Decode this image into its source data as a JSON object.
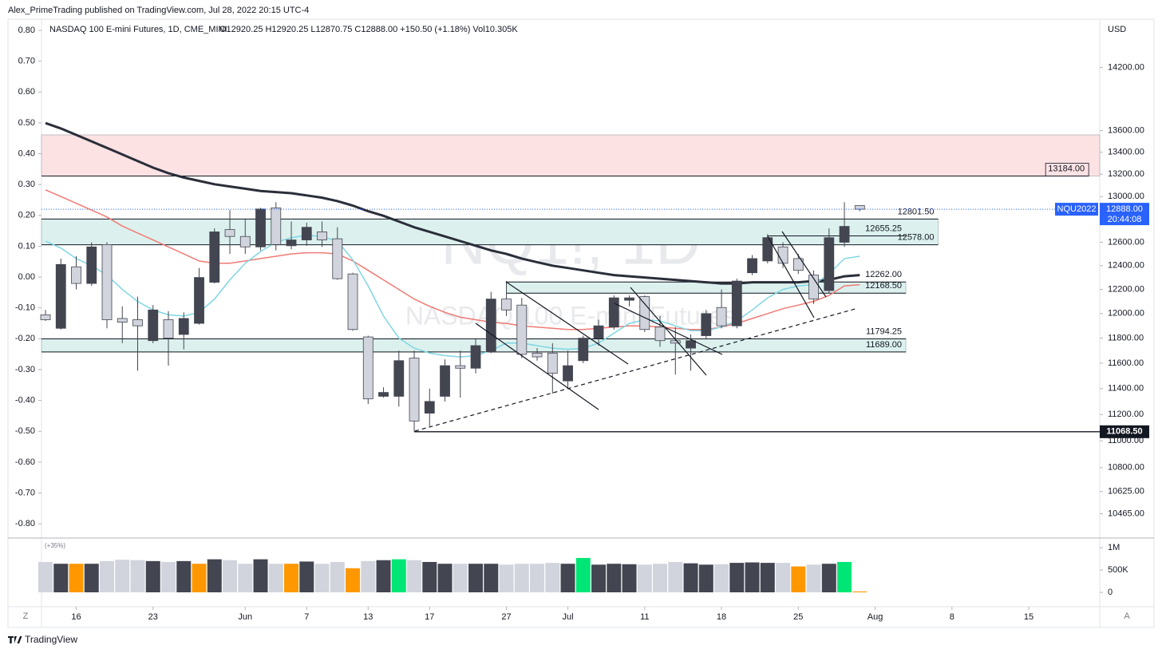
{
  "chart_data": {
    "type": "candlestick",
    "publisher": "Alex_PrimeTrading published on TradingView.com, Jul 28, 2022 20:15 UTC-4",
    "title": "NASDAQ 100 E-mini Futures, 1D, CME_MINI",
    "ohlc_header": "O12920.25 H12920.25 L12870.75 C12888.00 +150.50 (+1.18%) Vol10.305K",
    "watermark": "NQ1!, 1D",
    "watermark_sub": "NASDAQ 100 E-mini Futures",
    "currency": "USD",
    "log_scale": true,
    "ylim": [
      10343,
      14645
    ],
    "yticks": [
      {
        "value": 14200,
        "label": "14200.00"
      },
      {
        "value": 13600,
        "label": "13600.00"
      },
      {
        "value": 13400,
        "label": "13400.00"
      },
      {
        "value": 13200,
        "label": "13200.00"
      },
      {
        "value": 13000,
        "label": "13000.00"
      },
      {
        "value": 12800,
        "label": "12800.00"
      },
      {
        "value": 12600,
        "label": "12600.00"
      },
      {
        "value": 12400,
        "label": "12400.00"
      },
      {
        "value": 12200,
        "label": "12200.00"
      },
      {
        "value": 12000,
        "label": "12000.00"
      },
      {
        "value": 11800,
        "label": "11800.00"
      },
      {
        "value": 11600,
        "label": "11600.00"
      },
      {
        "value": 11400,
        "label": "11400.00"
      },
      {
        "value": 11200,
        "label": "11200.00"
      },
      {
        "value": 11000,
        "label": "11000.00"
      },
      {
        "value": 10800,
        "label": "10800.00"
      },
      {
        "value": 10625,
        "label": "10625.00"
      },
      {
        "value": 10465,
        "label": "10465.00"
      }
    ],
    "y2lim": [
      -0.823,
      0.826
    ],
    "y2ticks": [
      {
        "value": 0.8,
        "label": "0.80"
      },
      {
        "value": 0.7,
        "label": "0.70"
      },
      {
        "value": 0.6,
        "label": "0.60"
      },
      {
        "value": 0.5,
        "label": "0.50"
      },
      {
        "value": 0.4,
        "label": "0.40"
      },
      {
        "value": 0.3,
        "label": "0.30"
      },
      {
        "value": 0.2,
        "label": "0.20"
      },
      {
        "value": 0.1,
        "label": "0.10"
      },
      {
        "value": 0,
        "label": "0.00"
      },
      {
        "value": -0.1,
        "label": "-0.10"
      },
      {
        "value": -0.2,
        "label": "-0.20"
      },
      {
        "value": -0.3,
        "label": "-0.30"
      },
      {
        "value": -0.4,
        "label": "-0.40"
      },
      {
        "value": -0.5,
        "label": "-0.50"
      },
      {
        "value": -0.6,
        "label": "-0.60"
      },
      {
        "value": -0.7,
        "label": "-0.70"
      },
      {
        "value": -0.8,
        "label": "-0.80"
      }
    ],
    "xlim": [
      -0.26,
      68.62
    ],
    "xticks": [
      {
        "value": 2,
        "label": "16"
      },
      {
        "value": 7,
        "label": "23"
      },
      {
        "value": 13,
        "label": "Jun"
      },
      {
        "value": 17,
        "label": "7"
      },
      {
        "value": 21,
        "label": "13"
      },
      {
        "value": 25,
        "label": "17"
      },
      {
        "value": 30,
        "label": "27"
      },
      {
        "value": 34,
        "label": "Jul"
      },
      {
        "value": 39,
        "label": "11"
      },
      {
        "value": 44,
        "label": "18"
      },
      {
        "value": 49,
        "label": "25"
      },
      {
        "value": 54,
        "label": "Aug"
      },
      {
        "value": 59,
        "label": "8"
      },
      {
        "value": 64,
        "label": "15"
      }
    ],
    "up_color": "#434651",
    "down_color": "#d1d4dc",
    "candles": {
      "open": [
        11990,
        11880,
        12390,
        12250,
        12580,
        11960,
        11950,
        11780,
        11950,
        11830,
        11920,
        12260,
        12710,
        12650,
        12560,
        12900,
        12570,
        12620,
        12690,
        12630,
        12330,
        11810,
        11340,
        11340,
        11640,
        11210,
        11340,
        11580,
        11560,
        11690,
        12120,
        12070,
        11680,
        11680,
        11460,
        11620,
        11800,
        11890,
        12110,
        12140,
        11890,
        11780,
        11720,
        11820,
        12050,
        11900,
        12340,
        12440,
        12560,
        12460,
        12320,
        12190,
        12600,
        12920.25
      ],
      "high": [
        12030,
        12460,
        12480,
        12600,
        12600,
        12060,
        12140,
        12070,
        12020,
        12010,
        12380,
        12720,
        12880,
        12800,
        12900,
        12950,
        12780,
        12770,
        12780,
        12730,
        12340,
        11820,
        11410,
        11700,
        11700,
        11400,
        11630,
        11700,
        11800,
        12180,
        12270,
        12130,
        11720,
        11760,
        11700,
        11820,
        11950,
        12150,
        12150,
        12150,
        11980,
        11890,
        11830,
        12030,
        12200,
        12290,
        12490,
        12670,
        12600,
        12500,
        12360,
        12720,
        12950,
        12920.25
      ],
      "low": [
        11940,
        11870,
        12200,
        12230,
        11880,
        11760,
        11540,
        11760,
        11580,
        11710,
        11910,
        12250,
        12500,
        12500,
        12530,
        12530,
        12540,
        12570,
        12560,
        12280,
        11860,
        11280,
        11330,
        11260,
        11068.5,
        11110,
        11300,
        11330,
        11520,
        11680,
        11980,
        11640,
        11620,
        11360,
        11400,
        11600,
        11740,
        11870,
        12060,
        11850,
        11730,
        11510,
        11540,
        11790,
        11880,
        11880,
        12320,
        12420,
        12380,
        12330,
        12080,
        12170,
        12560,
        12870.75
      ],
      "close": [
        11950,
        12410,
        12250,
        12560,
        11950,
        11930,
        11900,
        12030,
        11800,
        11960,
        12300,
        12690,
        12650,
        12560,
        12890,
        12580,
        12620,
        12730,
        12620,
        12290,
        11870,
        11320,
        11370,
        11620,
        11150,
        11300,
        11580,
        11560,
        11740,
        12120,
        12030,
        11670,
        11650,
        11520,
        11580,
        11800,
        11900,
        12130,
        12130,
        11870,
        11780,
        11760,
        11780,
        12000,
        11900,
        12270,
        12460,
        12640,
        12420,
        12360,
        12120,
        12640,
        12737.5,
        12888
      ]
    },
    "series": [
      {
        "color": "#2a2e39",
        "line_width": 3,
        "values": [
          13670,
          13620,
          13560,
          13500,
          13440,
          13380,
          13320,
          13260,
          13210,
          13170,
          13140,
          13110,
          13090,
          13070,
          13050,
          13040,
          13030,
          13010,
          12990,
          12960,
          12920,
          12870,
          12830,
          12780,
          12730,
          12690,
          12650,
          12610,
          12570,
          12530,
          12500,
          12460,
          12430,
          12400,
          12380,
          12360,
          12340,
          12320,
          12310,
          12300,
          12290,
          12280,
          12270,
          12260,
          12250,
          12250,
          12260,
          12260,
          12260,
          12260,
          12270,
          12280,
          12310,
          12320
        ]
      },
      {
        "color": "#f07a74",
        "line_width": 1.5,
        "values": [
          13060,
          13000,
          12940,
          12880,
          12820,
          12740,
          12680,
          12620,
          12560,
          12500,
          12440,
          12420,
          12420,
          12440,
          12460,
          12480,
          12500,
          12510,
          12510,
          12500,
          12440,
          12360,
          12280,
          12200,
          12120,
          12060,
          12010,
          11970,
          11950,
          11930,
          11920,
          11900,
          11890,
          11880,
          11870,
          11870,
          11880,
          11890,
          11900,
          11900,
          11890,
          11880,
          11870,
          11870,
          11890,
          11920,
          11960,
          12000,
          12040,
          12070,
          12100,
          12150,
          12230,
          12240
        ]
      },
      {
        "color": "#7fd6e3",
        "line_width": 1.5,
        "values": [
          12610,
          12550,
          12460,
          12400,
          12320,
          12200,
          12100,
          12030,
          11990,
          11980,
          12010,
          12120,
          12280,
          12420,
          12520,
          12600,
          12640,
          12660,
          12650,
          12610,
          12450,
          12230,
          11980,
          11800,
          11720,
          11680,
          11660,
          11650,
          11660,
          11700,
          11760,
          11760,
          11740,
          11720,
          11710,
          11720,
          11760,
          11840,
          11920,
          11950,
          11940,
          11900,
          11860,
          11860,
          11890,
          11940,
          12030,
          12130,
          12200,
          12230,
          12240,
          12330,
          12460,
          12480
        ]
      }
    ],
    "zones": [
      {
        "top": 13560,
        "bottom": 13184,
        "from": -0.26,
        "to": 68.62,
        "color": "#fde2e4"
      },
      {
        "top": 12801.5,
        "bottom": 12578,
        "from": -0.26,
        "to": 58.1,
        "color": "#dcf1ee"
      },
      {
        "top": 12262,
        "bottom": 12168.5,
        "from": 30,
        "to": 56,
        "color": "#dcf1ee"
      },
      {
        "top": 11794.25,
        "bottom": 11689,
        "from": -0.26,
        "to": 56,
        "color": "#dcf1ee"
      }
    ],
    "levels": [
      {
        "value": 13184,
        "label": "13184.00",
        "from": -0.26,
        "to": 67.9,
        "box": true
      },
      {
        "value": 12801.5,
        "label": "12801.50",
        "from": -0.26,
        "to": 58.1
      },
      {
        "value": 12655.25,
        "label": "12655.25",
        "from": 47,
        "to": 56
      },
      {
        "value": 12578,
        "label": "12578.00",
        "from": -0.26,
        "to": 58.1
      },
      {
        "value": 12262,
        "label": "12262.00",
        "from": 30,
        "to": 56
      },
      {
        "value": 12168.5,
        "label": "12168.50",
        "from": 30,
        "to": 56
      },
      {
        "value": 11794.25,
        "label": "11794.25",
        "from": -0.26,
        "to": 56
      },
      {
        "value": 11689,
        "label": "11689.00",
        "from": -0.26,
        "to": 56
      },
      {
        "value": 11068.5,
        "label": "11068.50",
        "from": 24,
        "to": 68.62,
        "tag": true
      }
    ],
    "last": {
      "value": 12888,
      "label": "12888.00",
      "symbol": "NQU2022",
      "countdown": "20:44:08",
      "color": "#2962ff"
    },
    "volume": {
      "label": "(+35%)",
      "ylim": [
        0,
        1180000
      ],
      "yticks": [
        {
          "value": 1000000,
          "label": "1M"
        },
        {
          "value": 500000,
          "label": "500K"
        },
        0
      ],
      "values": [
        680000,
        640000,
        640000,
        640000,
        700000,
        730000,
        720000,
        700000,
        680000,
        700000,
        640000,
        740000,
        720000,
        640000,
        740000,
        640000,
        640000,
        690000,
        640000,
        680000,
        540000,
        700000,
        720000,
        740000,
        720000,
        680000,
        640000,
        640000,
        640000,
        640000,
        620000,
        640000,
        640000,
        660000,
        640000,
        770000,
        620000,
        640000,
        630000,
        620000,
        640000,
        680000,
        650000,
        620000,
        630000,
        660000,
        670000,
        660000,
        660000,
        580000,
        620000,
        640000,
        680000,
        20000
      ],
      "colors": [
        "#d1d4dc",
        "#434651",
        "#ff9800",
        "#434651",
        "#d1d4dc",
        "#d1d4dc",
        "#d1d4dc",
        "#434651",
        "#d1d4dc",
        "#434651",
        "#ff9800",
        "#434651",
        "#d1d4dc",
        "#d1d4dc",
        "#434651",
        "#d1d4dc",
        "#ff9800",
        "#434651",
        "#d1d4dc",
        "#d1d4dc",
        "#ff9800",
        "#d1d4dc",
        "#434651",
        "#00e676",
        "#d1d4dc",
        "#434651",
        "#434651",
        "#d1d4dc",
        "#434651",
        "#434651",
        "#d1d4dc",
        "#d1d4dc",
        "#d1d4dc",
        "#d1d4dc",
        "#434651",
        "#00e676",
        "#434651",
        "#434651",
        "#434651",
        "#d1d4dc",
        "#d1d4dc",
        "#d1d4dc",
        "#434651",
        "#434651",
        "#d1d4dc",
        "#434651",
        "#434651",
        "#434651",
        "#d1d4dc",
        "#ff9800",
        "#d1d4dc",
        "#434651",
        "#00e676",
        "#ff9800"
      ]
    },
    "left_button": "Z",
    "right_button": "A",
    "footer": "TradingView"
  }
}
